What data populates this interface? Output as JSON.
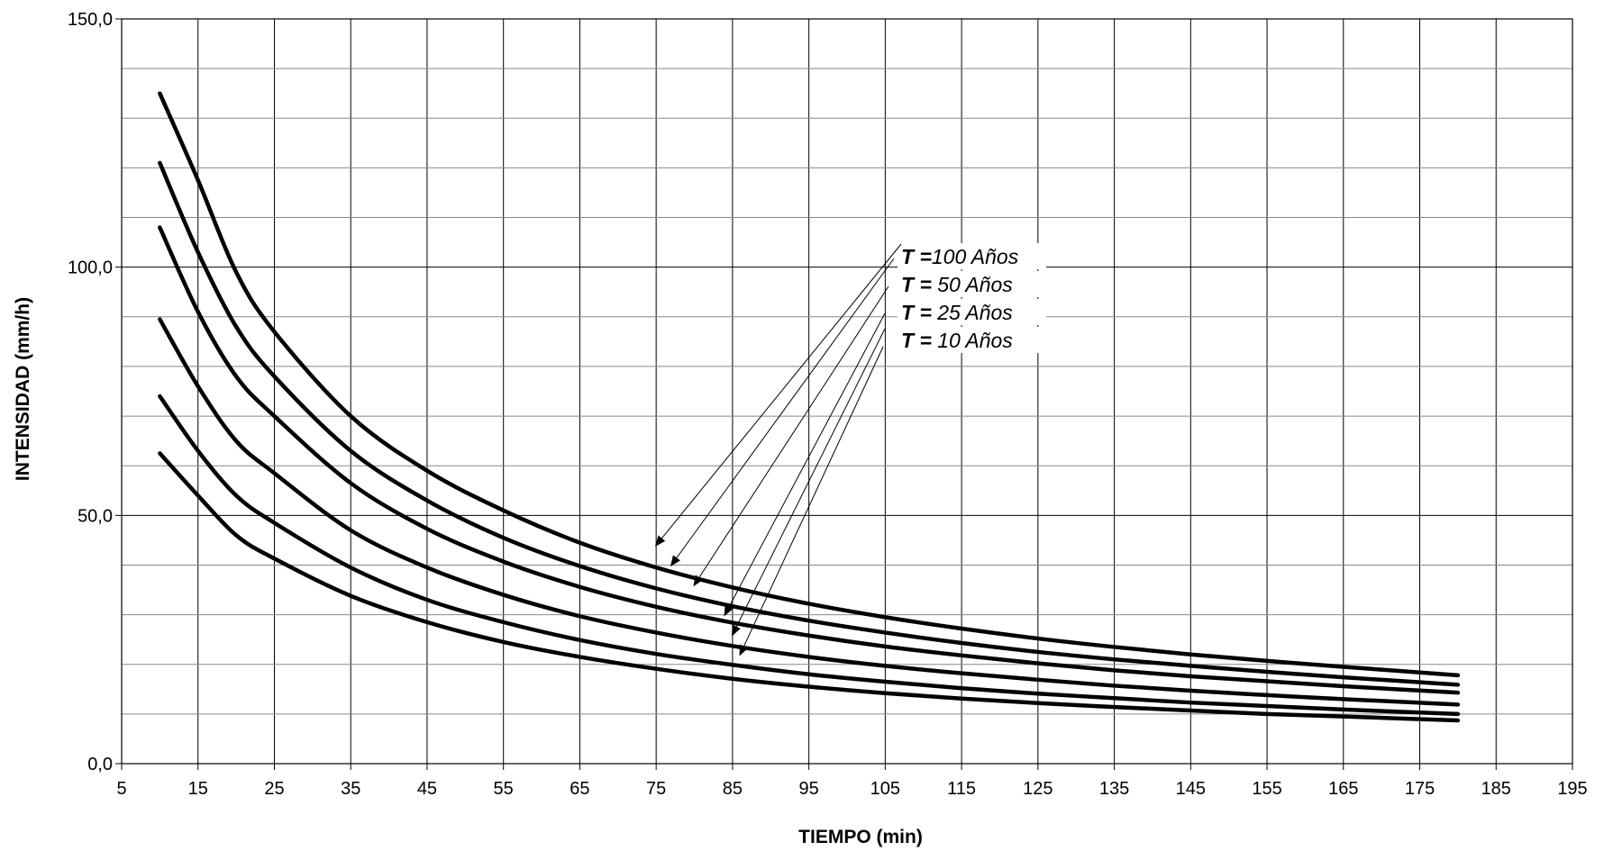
{
  "chart_data": {
    "type": "line",
    "xlabel": "TIEMPO (min)",
    "ylabel": "INTENSIDAD (mm/h)",
    "xlim": [
      5,
      195
    ],
    "ylim": [
      0,
      150
    ],
    "x_ticks": [
      "5",
      "15",
      "25",
      "35",
      "45",
      "55",
      "65",
      "75",
      "85",
      "95",
      "105",
      "115",
      "125",
      "135",
      "145",
      "155",
      "165",
      "175",
      "185",
      "195"
    ],
    "x_tick_values": [
      5,
      15,
      25,
      35,
      45,
      55,
      65,
      75,
      85,
      95,
      105,
      115,
      125,
      135,
      145,
      155,
      165,
      175,
      185,
      195
    ],
    "y_ticks": [
      "0,0",
      "50,0",
      "100,0",
      "150,0"
    ],
    "y_tick_values": [
      0,
      50,
      100,
      150
    ],
    "y_minor_step": 10,
    "grid": true,
    "x": [
      10,
      15,
      20,
      25,
      35,
      45,
      55,
      65,
      75,
      85,
      95,
      105,
      115,
      125,
      135,
      145,
      155,
      165,
      180
    ],
    "series": [
      {
        "values": [
          135.0,
          117.5,
          99.0,
          87.0,
          70.0,
          59.0,
          51.0,
          44.5,
          39.5,
          35.5,
          32.2,
          29.5,
          27.2,
          25.2,
          23.5,
          22.0,
          20.7,
          19.5,
          17.8
        ]
      },
      {
        "values": [
          121.0,
          103.0,
          88.0,
          78.0,
          63.0,
          53.0,
          45.5,
          39.8,
          35.3,
          31.7,
          28.8,
          26.4,
          24.3,
          22.5,
          21.0,
          19.7,
          18.5,
          17.4,
          15.9
        ]
      },
      {
        "values": [
          108.0,
          91.0,
          78.0,
          70.0,
          56.5,
          47.3,
          40.7,
          35.6,
          31.6,
          28.4,
          25.8,
          23.6,
          21.8,
          20.2,
          18.8,
          17.6,
          16.6,
          15.6,
          14.3
        ]
      },
      {
        "values": [
          89.5,
          76.0,
          65.0,
          58.5,
          47.0,
          39.5,
          34.0,
          29.7,
          26.4,
          23.7,
          21.5,
          19.7,
          18.2,
          16.9,
          15.7,
          14.7,
          13.8,
          13.0,
          11.9
        ]
      },
      {
        "values": [
          74.0,
          63.0,
          54.0,
          48.5,
          39.5,
          33.0,
          28.5,
          24.9,
          22.1,
          19.9,
          18.0,
          16.5,
          15.2,
          14.1,
          13.2,
          12.3,
          11.6,
          10.9,
          10.0
        ]
      },
      {
        "values": [
          62.5,
          54.0,
          46.0,
          41.3,
          33.8,
          28.5,
          24.5,
          21.5,
          19.1,
          17.1,
          15.5,
          14.2,
          13.1,
          12.2,
          11.4,
          10.7,
          10.0,
          9.5,
          8.7
        ]
      }
    ],
    "legend": {
      "placement": "center-right",
      "entries": [
        {
          "prefix": "T =",
          "text": "100 Años",
          "arrow_target": [
            75,
            44
          ]
        },
        {
          "prefix": "T =",
          "text": " 50 Años",
          "arrow_target": [
            77,
            40
          ]
        },
        {
          "prefix": "T =",
          "text": " 25 Años",
          "arrow_target": [
            80,
            36
          ]
        },
        {
          "prefix": "T =",
          "text": " 10 Años",
          "arrow_target": [
            84,
            30
          ]
        }
      ],
      "extra_arrow_targets": [
        [
          85,
          26
        ],
        [
          86,
          22
        ]
      ]
    }
  }
}
